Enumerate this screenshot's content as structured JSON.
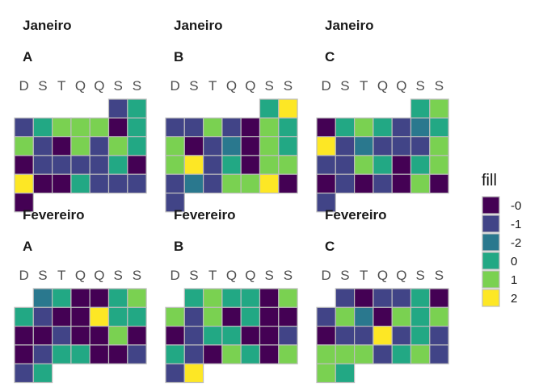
{
  "chart_data": {
    "type": "heatmap",
    "day_labels": [
      "D",
      "S",
      "T",
      "Q",
      "Q",
      "S",
      "S"
    ],
    "legend": {
      "title": "fill",
      "entries": [
        {
          "label": "-0",
          "color": "#440154"
        },
        {
          "label": "-1",
          "color": "#414487"
        },
        {
          "label": "-2",
          "color": "#2A788E"
        },
        {
          "label": "0",
          "color": "#22A884"
        },
        {
          "label": "1",
          "color": "#7AD151"
        },
        {
          "label": "2",
          "color": "#FDE725"
        }
      ]
    },
    "panels": [
      {
        "month": "Janeiro",
        "tag": "A",
        "start_col": 5,
        "values": [
          "-1",
          "0",
          "-1",
          "0",
          "1",
          "1",
          "1",
          "-0",
          "0",
          "1",
          "-1",
          "-0",
          "1",
          "-1",
          "1",
          "0",
          "-0",
          "-1",
          "-1",
          "-1",
          "-1",
          "0",
          "-0",
          "2",
          "-0",
          "-0",
          "0",
          "-1",
          "-1",
          "-1",
          "-0"
        ]
      },
      {
        "month": "Janeiro",
        "tag": "B",
        "start_col": 5,
        "values": [
          "0",
          "2",
          "-1",
          "-1",
          "1",
          "-1",
          "-0",
          "1",
          "0",
          "1",
          "-0",
          "-1",
          "-2",
          "-0",
          "1",
          "0",
          "1",
          "2",
          "-1",
          "0",
          "-0",
          "1",
          "1",
          "-1",
          "-2",
          "-1",
          "1",
          "1",
          "2",
          "-0",
          "-1"
        ]
      },
      {
        "month": "Janeiro",
        "tag": "C",
        "start_col": 5,
        "values": [
          "0",
          "1",
          "-0",
          "0",
          "1",
          "0",
          "-1",
          "-2",
          "0",
          "2",
          "-1",
          "-2",
          "-1",
          "-1",
          "-1",
          "1",
          "-1",
          "-1",
          "1",
          "0",
          "-0",
          "0",
          "1",
          "-0",
          "-1",
          "-0",
          "-1",
          "-0",
          "1",
          "-0",
          "-1"
        ]
      },
      {
        "month": "Fevereiro",
        "tag": "A",
        "start_col": 1,
        "values": [
          "-2",
          "0",
          "-0",
          "-0",
          "0",
          "1",
          "0",
          "-1",
          "-0",
          "-0",
          "2",
          "0",
          "0",
          "-0",
          "-0",
          "-1",
          "-0",
          "-0",
          "1",
          "-0",
          "-0",
          "-1",
          "0",
          "0",
          "-0",
          "-0",
          "-1",
          "-1",
          "0"
        ]
      },
      {
        "month": "Fevereiro",
        "tag": "B",
        "start_col": 1,
        "values": [
          "0",
          "1",
          "0",
          "0",
          "-0",
          "1",
          "1",
          "-1",
          "1",
          "-0",
          "0",
          "-0",
          "-0",
          "-0",
          "-1",
          "0",
          "0",
          "-0",
          "-0",
          "-1",
          "0",
          "-1",
          "-0",
          "1",
          "0",
          "-0",
          "1",
          "-1",
          "2"
        ]
      },
      {
        "month": "Fevereiro",
        "tag": "C",
        "start_col": 1,
        "values": [
          "-1",
          "-0",
          "-1",
          "-1",
          "0",
          "-0",
          "-1",
          "1",
          "-2",
          "-0",
          "1",
          "0",
          "1",
          "-0",
          "-1",
          "-1",
          "2",
          "-1",
          "0",
          "-1",
          "1",
          "1",
          "1",
          "-1",
          "0",
          "1",
          "-1",
          "1",
          "0"
        ]
      }
    ]
  }
}
